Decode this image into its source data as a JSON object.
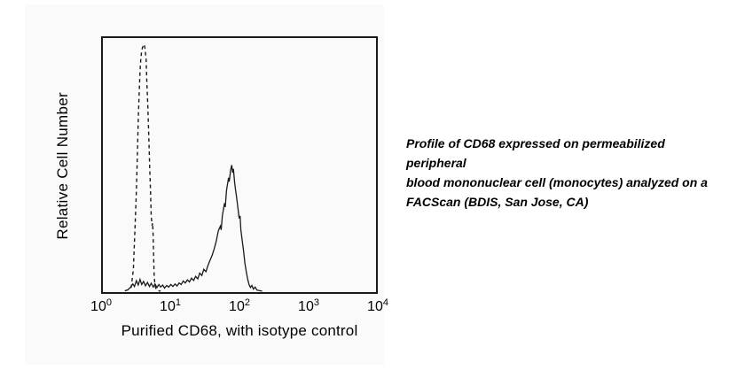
{
  "page": {
    "background": "#ffffff",
    "panel_background": "#fafafa",
    "curve_color": "#1a1a1a"
  },
  "chart": {
    "y_axis_label": "Relative Cell Number",
    "x_axis_label": "Purified CD68, with isotype control",
    "x_ticks": [
      {
        "base": "10",
        "exp": "0"
      },
      {
        "base": "10",
        "exp": "1"
      },
      {
        "base": "10",
        "exp": "2"
      },
      {
        "base": "10",
        "exp": "3"
      },
      {
        "base": "10",
        "exp": "4"
      }
    ]
  },
  "caption": {
    "lines": [
      "Profile of CD68 expressed on permeabilized peripheral",
      "blood mononuclear cell (monocytes) analyzed on a",
      "FACScan (BDIS, San Jose, CA)"
    ]
  },
  "chart_data": {
    "type": "line",
    "subtype": "flow-cytometry-histogram-overlay",
    "title": "",
    "xlabel": "Purified CD68, with isotype control",
    "ylabel": "Relative Cell Number",
    "x_scale": "log10",
    "x_range": [
      1,
      10000
    ],
    "x_tick_labels": [
      "10^0",
      "10^1",
      "10^2",
      "10^3",
      "10^4"
    ],
    "y_units": "relative cell number (unlabeled arbitrary units, 0-1 of plot height)",
    "grid": false,
    "legend": "none (dashed = isotype control, solid = Purified CD68)",
    "series": [
      {
        "name": "isotype control",
        "style": "dashed",
        "color": "#1a1a1a",
        "peak_x": 4,
        "peak_y": 0.975,
        "points": [
          [
            2.1,
            0.005
          ],
          [
            2.4,
            0.01
          ],
          [
            2.6,
            0.02
          ],
          [
            2.8,
            0.09
          ],
          [
            2.95,
            0.25
          ],
          [
            3.1,
            0.4
          ],
          [
            3.2,
            0.54
          ],
          [
            3.3,
            0.68
          ],
          [
            3.4,
            0.78
          ],
          [
            3.5,
            0.87
          ],
          [
            3.6,
            0.92
          ],
          [
            3.7,
            0.95
          ],
          [
            3.8,
            0.962
          ],
          [
            3.92,
            0.972
          ],
          [
            4.05,
            0.975
          ],
          [
            4.15,
            0.955
          ],
          [
            4.3,
            0.915
          ],
          [
            4.4,
            0.835
          ],
          [
            4.55,
            0.73
          ],
          [
            4.7,
            0.61
          ],
          [
            4.85,
            0.49
          ],
          [
            5.0,
            0.39
          ],
          [
            5.1,
            0.3
          ],
          [
            5.25,
            0.262
          ],
          [
            5.35,
            0.272
          ],
          [
            5.45,
            0.22
          ],
          [
            5.55,
            0.13
          ],
          [
            5.65,
            0.06
          ],
          [
            5.8,
            0.025
          ],
          [
            6.0,
            0.012
          ],
          [
            6.4,
            0.006
          ],
          [
            7.0,
            0.004
          ]
        ]
      },
      {
        "name": "Purified CD68",
        "style": "solid",
        "color": "#1a1a1a",
        "peak_x": 77,
        "peak_y": 0.5,
        "points": [
          [
            2.3,
            0.008
          ],
          [
            2.55,
            0.02
          ],
          [
            2.75,
            0.032
          ],
          [
            2.9,
            0.022
          ],
          [
            3.1,
            0.045
          ],
          [
            3.3,
            0.028
          ],
          [
            3.5,
            0.05
          ],
          [
            3.7,
            0.03
          ],
          [
            3.95,
            0.042
          ],
          [
            4.2,
            0.025
          ],
          [
            4.5,
            0.038
          ],
          [
            4.8,
            0.022
          ],
          [
            5.1,
            0.035
          ],
          [
            5.45,
            0.02
          ],
          [
            5.8,
            0.032
          ],
          [
            6.2,
            0.018
          ],
          [
            6.6,
            0.03
          ],
          [
            7.0,
            0.02
          ],
          [
            7.5,
            0.028
          ],
          [
            8.0,
            0.016
          ],
          [
            8.6,
            0.026
          ],
          [
            9.2,
            0.02
          ],
          [
            9.9,
            0.03
          ],
          [
            10.6,
            0.022
          ],
          [
            11.4,
            0.032
          ],
          [
            12.2,
            0.024
          ],
          [
            13.1,
            0.036
          ],
          [
            14.0,
            0.03
          ],
          [
            15.0,
            0.044
          ],
          [
            16.1,
            0.036
          ],
          [
            17.3,
            0.048
          ],
          [
            18.5,
            0.04
          ],
          [
            19.9,
            0.055
          ],
          [
            21.3,
            0.046
          ],
          [
            22.8,
            0.062
          ],
          [
            24.5,
            0.052
          ],
          [
            26.2,
            0.075
          ],
          [
            28.1,
            0.065
          ],
          [
            30.1,
            0.09
          ],
          [
            32.3,
            0.08
          ],
          [
            34.6,
            0.105
          ],
          [
            37.1,
            0.125
          ],
          [
            39.8,
            0.145
          ],
          [
            42.6,
            0.17
          ],
          [
            45.7,
            0.2
          ],
          [
            49.0,
            0.24
          ],
          [
            52.5,
            0.26
          ],
          [
            54.0,
            0.245
          ],
          [
            56.2,
            0.3
          ],
          [
            60.3,
            0.35
          ],
          [
            62.0,
            0.335
          ],
          [
            64.6,
            0.4
          ],
          [
            69.2,
            0.45
          ],
          [
            71.0,
            0.435
          ],
          [
            74.1,
            0.48
          ],
          [
            77.0,
            0.5
          ],
          [
            79.4,
            0.47
          ],
          [
            81.5,
            0.485
          ],
          [
            85.1,
            0.43
          ],
          [
            88.0,
            0.4
          ],
          [
            91.2,
            0.37
          ],
          [
            95.0,
            0.33
          ],
          [
            99.0,
            0.29
          ],
          [
            102,
            0.3
          ],
          [
            105,
            0.245
          ],
          [
            110,
            0.2
          ],
          [
            115,
            0.16
          ],
          [
            120,
            0.115
          ],
          [
            126,
            0.08
          ],
          [
            132,
            0.05
          ],
          [
            138,
            0.03
          ],
          [
            145,
            0.018
          ],
          [
            152,
            0.026
          ],
          [
            160,
            0.012
          ],
          [
            170,
            0.02
          ],
          [
            180,
            0.008
          ],
          [
            195,
            0.006
          ],
          [
            215,
            0.004
          ]
        ]
      }
    ]
  }
}
